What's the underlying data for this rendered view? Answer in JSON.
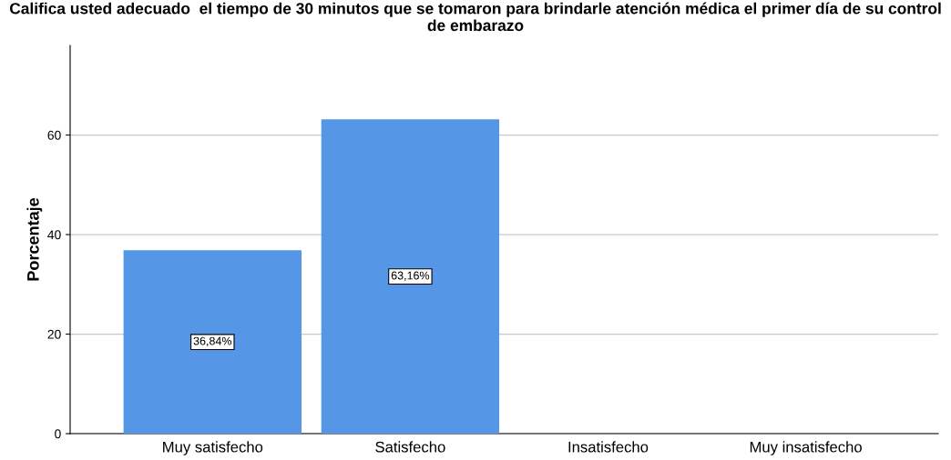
{
  "chart_data": {
    "type": "bar",
    "title": "Califica usted adecuado  el tiempo de 30 minutos que se tomaron para brindarle atención médica el primer día de su control de embarazo",
    "ylabel": "Porcentaje",
    "categories": [
      "Muy satisfecho",
      "Satisfecho",
      "Insatisfecho",
      "Muy insatisfecho"
    ],
    "values": [
      36.84,
      63.16,
      null,
      null
    ],
    "value_labels": [
      "36,84%",
      "63,16%",
      null,
      null
    ],
    "color": "#5596e6",
    "ylim": [
      0,
      78
    ],
    "yticks": [
      0,
      20,
      40,
      60
    ],
    "grid": "y"
  }
}
